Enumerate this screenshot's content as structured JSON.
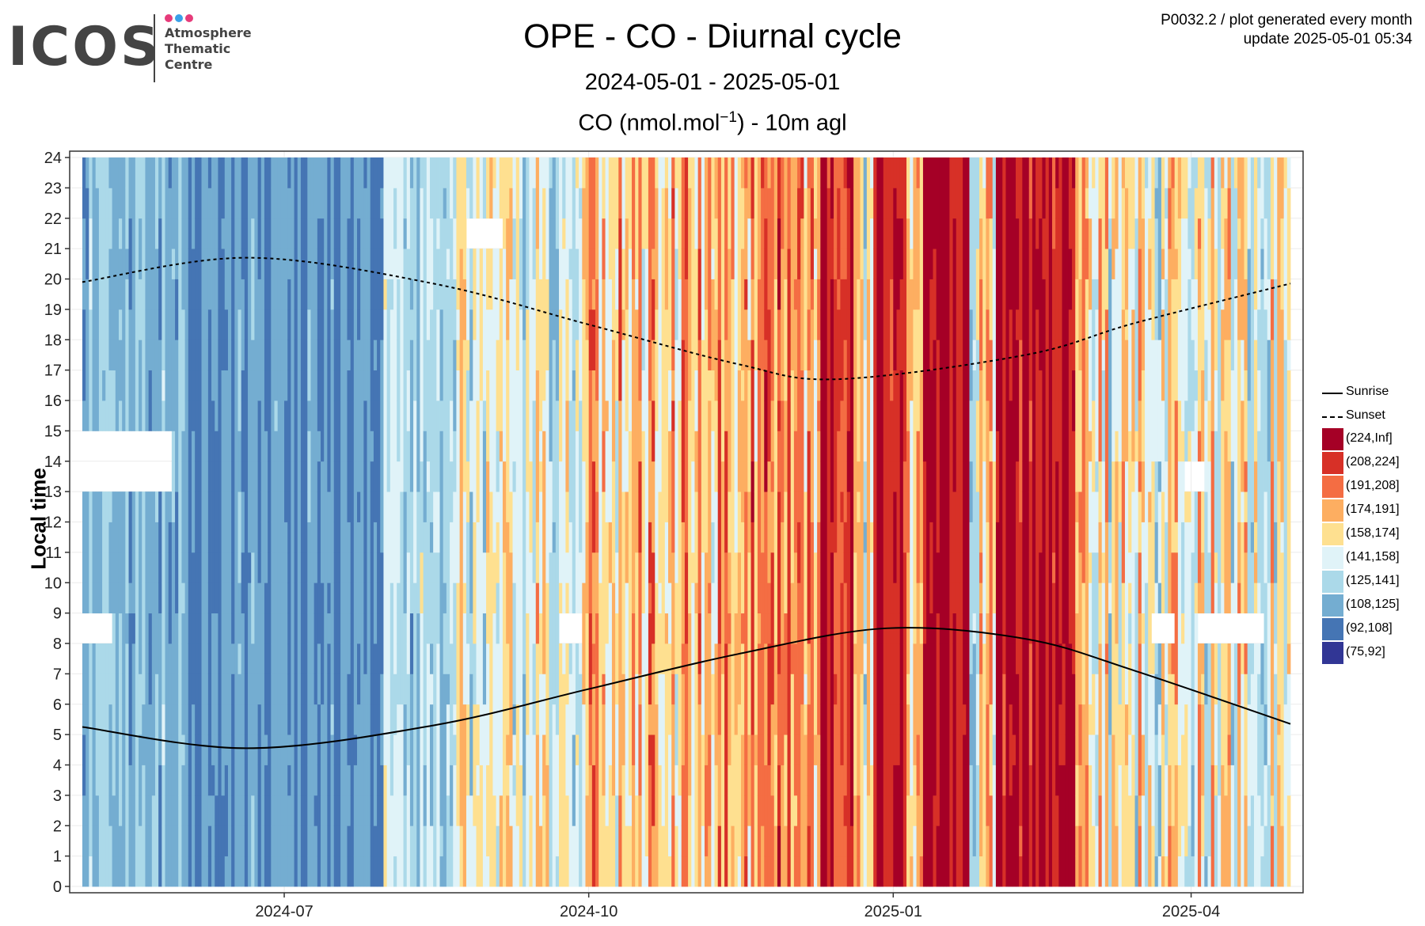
{
  "logo": {
    "word": "ICOS",
    "line1": "Atmosphere",
    "line2": "Thematic",
    "line3": "Centre",
    "dot_colors": [
      "#e63b7a",
      "#3aa0e8",
      "#e63b7a"
    ]
  },
  "meta": {
    "line1": "P0032.2 / plot generated every month",
    "line2": "update  2025-05-01 05:34"
  },
  "chart_data": {
    "type": "heatmap",
    "title": "OPE - CO - Diurnal cycle",
    "subtitle": "2024-05-01 - 2025-05-01",
    "subtitle2_main": "CO (nmol.mol",
    "subtitle2_sup": "−1",
    "subtitle2_tail": ") - 10m agl",
    "ylabel": "Local time",
    "xlabel": "",
    "x_range": [
      "2024-05-01",
      "2025-05-01"
    ],
    "x_ticks": [
      {
        "date": "2024-07-01",
        "label": "2024-07"
      },
      {
        "date": "2024-10-01",
        "label": "2024-10"
      },
      {
        "date": "2025-01-01",
        "label": "2025-01"
      },
      {
        "date": "2025-04-01",
        "label": "2025-04"
      }
    ],
    "y_ticks": [
      0,
      1,
      2,
      3,
      4,
      5,
      6,
      7,
      8,
      9,
      10,
      11,
      12,
      13,
      14,
      15,
      16,
      17,
      18,
      19,
      20,
      21,
      22,
      23,
      24
    ],
    "ylim": [
      0,
      24
    ],
    "grid": true,
    "legend_position": "right",
    "bins": [
      {
        "label": "(224,Inf]",
        "color": "#a50026"
      },
      {
        "label": "(208,224]",
        "color": "#d73027"
      },
      {
        "label": "(191,208]",
        "color": "#f46d43"
      },
      {
        "label": "(174,191]",
        "color": "#fdae61"
      },
      {
        "label": "(158,174]",
        "color": "#fee090"
      },
      {
        "label": "(141,158]",
        "color": "#e0f3f8"
      },
      {
        "label": "(125,141]",
        "color": "#abd9e9"
      },
      {
        "label": "(108,125]",
        "color": "#74add1"
      },
      {
        "label": "(92,108]",
        "color": "#4575b4"
      },
      {
        "label": "(75,92]",
        "color": "#313695"
      }
    ],
    "level_by_period": [
      {
        "start": "2024-05-01",
        "end": "2024-06-01",
        "level": 2.4,
        "spread": 1.0
      },
      {
        "start": "2024-06-01",
        "end": "2024-07-31",
        "level": 1.6,
        "spread": 0.8
      },
      {
        "start": "2024-07-31",
        "end": "2024-08-20",
        "level": 3.0,
        "spread": 1.4
      },
      {
        "start": "2024-08-20",
        "end": "2024-10-01",
        "level": 4.4,
        "spread": 2.0
      },
      {
        "start": "2024-10-01",
        "end": "2024-11-15",
        "level": 5.8,
        "spread": 2.2
      },
      {
        "start": "2024-11-15",
        "end": "2024-12-10",
        "level": 6.2,
        "spread": 2.2
      },
      {
        "start": "2024-12-10",
        "end": "2024-12-20",
        "level": 8.2,
        "spread": 1.2
      },
      {
        "start": "2024-12-20",
        "end": "2024-12-26",
        "level": 4.5,
        "spread": 2.0
      },
      {
        "start": "2024-12-26",
        "end": "2025-01-05",
        "level": 8.5,
        "spread": 1.0
      },
      {
        "start": "2025-01-05",
        "end": "2025-01-10",
        "level": 6.0,
        "spread": 2.2
      },
      {
        "start": "2025-01-10",
        "end": "2025-01-24",
        "level": 8.6,
        "spread": 0.9
      },
      {
        "start": "2025-01-24",
        "end": "2025-02-01",
        "level": 4.5,
        "spread": 2.2
      },
      {
        "start": "2025-02-01",
        "end": "2025-02-25",
        "level": 8.4,
        "spread": 1.1
      },
      {
        "start": "2025-02-25",
        "end": "2025-05-01",
        "level": 4.6,
        "spread": 2.2
      }
    ],
    "missing_data": [
      {
        "start": "2024-05-01",
        "end": "2024-05-10",
        "hour_from": 8,
        "hour_to": 9
      },
      {
        "start": "2024-05-01",
        "end": "2024-05-28",
        "hour_from": 13,
        "hour_to": 15
      },
      {
        "start": "2024-08-25",
        "end": "2024-09-05",
        "hour_from": 21,
        "hour_to": 22
      },
      {
        "start": "2024-09-22",
        "end": "2024-09-29",
        "hour_from": 8,
        "hour_to": 9
      },
      {
        "start": "2025-03-20",
        "end": "2025-03-27",
        "hour_from": 8,
        "hour_to": 9
      },
      {
        "start": "2025-04-03",
        "end": "2025-04-23",
        "hour_from": 8,
        "hour_to": 9
      },
      {
        "start": "2025-03-30",
        "end": "2025-04-05",
        "hour_from": 13,
        "hour_to": 14
      }
    ],
    "series": [
      {
        "name": "Sunrise",
        "style": "solid",
        "points": [
          [
            "2024-05-01",
            5.25
          ],
          [
            "2024-06-20",
            4.55
          ],
          [
            "2024-08-15",
            5.3
          ],
          [
            "2024-10-01",
            6.5
          ],
          [
            "2024-11-15",
            7.65
          ],
          [
            "2024-12-30",
            8.5
          ],
          [
            "2025-02-10",
            8.15
          ],
          [
            "2025-03-15",
            7.1
          ],
          [
            "2025-05-01",
            5.35
          ]
        ]
      },
      {
        "name": "Sunset",
        "style": "dashed",
        "points": [
          [
            "2024-05-01",
            19.9
          ],
          [
            "2024-06-20",
            20.7
          ],
          [
            "2024-08-15",
            19.85
          ],
          [
            "2024-10-01",
            18.5
          ],
          [
            "2024-11-15",
            17.2
          ],
          [
            "2024-12-15",
            16.7
          ],
          [
            "2025-02-10",
            17.5
          ],
          [
            "2025-03-15",
            18.55
          ],
          [
            "2025-05-01",
            19.85
          ]
        ]
      }
    ]
  }
}
